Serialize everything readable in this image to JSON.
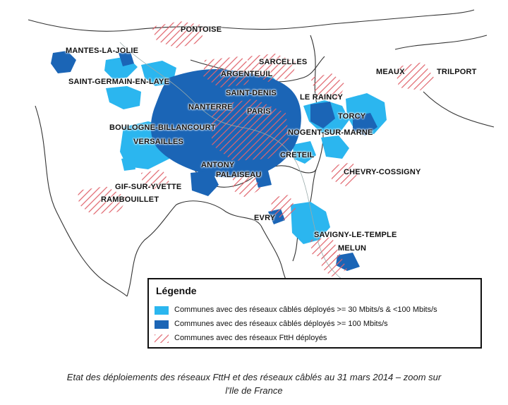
{
  "colors": {
    "cable_30_100": "#2bb6ef",
    "cable_100_plus": "#1b65b6",
    "ftth": "#e0646c",
    "boundary": "#333333"
  },
  "cities": [
    {
      "id": "pontoise",
      "name": "PONTOISE"
    },
    {
      "id": "mantes",
      "name": "MANTES-LA-JOLIE"
    },
    {
      "id": "sarcelles",
      "name": "SARCELLES"
    },
    {
      "id": "argenteuil",
      "name": "ARGENTEUIL"
    },
    {
      "id": "meaux",
      "name": "MEAUX"
    },
    {
      "id": "trilport",
      "name": "TRILPORT"
    },
    {
      "id": "saint-germain",
      "name": "SAINT-GERMAIN-EN-LAYE"
    },
    {
      "id": "saint-denis",
      "name": "SAINT-DENIS"
    },
    {
      "id": "le-raincy",
      "name": "LE RAINCY"
    },
    {
      "id": "nanterre",
      "name": "NANTERRE"
    },
    {
      "id": "paris",
      "name": "PARIS"
    },
    {
      "id": "torcy",
      "name": "TORCY"
    },
    {
      "id": "boulogne",
      "name": "BOULOGNE-BILLANCOURT"
    },
    {
      "id": "nogent",
      "name": "NOGENT-SUR-MARNE"
    },
    {
      "id": "versailles",
      "name": "VERSAILLES"
    },
    {
      "id": "creteil",
      "name": "CRETEIL"
    },
    {
      "id": "antony",
      "name": "ANTONY"
    },
    {
      "id": "chevry",
      "name": "CHEVRY-COSSIGNY"
    },
    {
      "id": "palaiseau",
      "name": "PALAISEAU"
    },
    {
      "id": "gif",
      "name": "GIF-SUR-YVETTE"
    },
    {
      "id": "rambouillet",
      "name": "RAMBOUILLET"
    },
    {
      "id": "evry",
      "name": "EVRY"
    },
    {
      "id": "savigny",
      "name": "SAVIGNY-LE-TEMPLE"
    },
    {
      "id": "melun",
      "name": "MELUN"
    }
  ],
  "legend": {
    "title": "Légende",
    "items": [
      {
        "label": "Communes avec des réseaux câblés déployés >= 30 Mbits/s & <100 Mbits/s",
        "kind": "cable_30_100"
      },
      {
        "label": "Communes avec des réseaux câblés déployés >= 100 Mbits/s",
        "kind": "cable_100_plus"
      },
      {
        "label": "Communes avec des réseaux FttH déployés",
        "kind": "ftth"
      }
    ]
  },
  "caption": {
    "line1": "Etat des déploiements des réseaux FttH et des réseaux câblés au 31 mars 2014 – zoom sur",
    "line2": "l'Ile de France"
  }
}
